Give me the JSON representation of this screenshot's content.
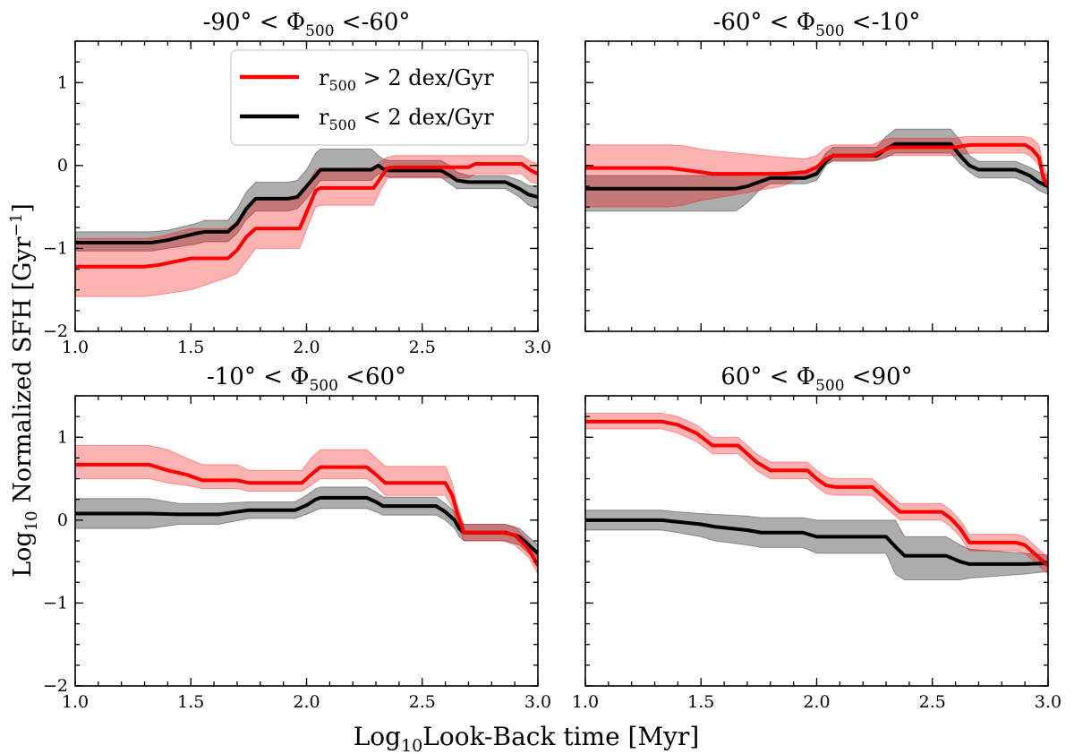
{
  "figure": {
    "xlabel_main": "Log",
    "xlabel_sub": "10",
    "xlabel_rest": "Look-Back time [Myr]",
    "ylabel_main": "Log",
    "ylabel_sub": "10",
    "ylabel_rest": " Normalized SFH [Gyr",
    "ylabel_sup": "−1",
    "ylabel_end": "]"
  },
  "legend": {
    "entries": [
      {
        "pre": "r",
        "sub": "500",
        "post": " > 2 dex/Gyr",
        "color": "#ff0000"
      },
      {
        "pre": "r",
        "sub": "500",
        "post": " < 2 dex/Gyr",
        "color": "#000000"
      }
    ]
  },
  "chart_data": [
    {
      "type": "line",
      "title_parts": {
        "pre": "-90° < Φ",
        "sub": "500",
        "post": " <-60°"
      },
      "xlim": [
        1.0,
        3.0
      ],
      "ylim": [
        -2,
        1.5
      ],
      "xticks": [
        1.0,
        1.5,
        2.0,
        2.5,
        3.0
      ],
      "xtick_labels": [
        "1.0",
        "1.5",
        "2.0",
        "2.5",
        "3.0"
      ],
      "yticks": [
        -2,
        -1,
        0,
        1
      ],
      "ytick_labels": [
        "−2",
        "−1",
        "0",
        "1"
      ],
      "series": [
        {
          "color": "#ff0000",
          "x": [
            1.0,
            1.3,
            1.36,
            1.5,
            1.66,
            1.7,
            1.74,
            1.78,
            1.97,
            2.01,
            2.04,
            2.06,
            2.29,
            2.32,
            2.35,
            2.38,
            2.7,
            2.73,
            2.93,
            2.97,
            3.0
          ],
          "y": [
            -1.22,
            -1.22,
            -1.2,
            -1.12,
            -1.12,
            -1.02,
            -0.86,
            -0.76,
            -0.76,
            -0.5,
            -0.3,
            -0.27,
            -0.27,
            -0.15,
            -0.03,
            -0.02,
            -0.02,
            0.02,
            0.02,
            -0.06,
            -0.1
          ],
          "lower": [
            -1.58,
            -1.58,
            -1.56,
            -1.5,
            -1.35,
            -1.3,
            -1.15,
            -1.0,
            -1.0,
            -0.7,
            -0.5,
            -0.48,
            -0.48,
            -0.3,
            -0.15,
            -0.15,
            -0.15,
            -0.1,
            -0.1,
            -0.2,
            -0.22
          ],
          "upper": [
            -0.88,
            -0.88,
            -0.86,
            -0.76,
            -0.76,
            -0.67,
            -0.5,
            -0.4,
            -0.4,
            -0.2,
            -0.05,
            -0.06,
            -0.06,
            0.05,
            0.1,
            0.12,
            0.12,
            0.12,
            0.12,
            0.05,
            0.02
          ]
        },
        {
          "color": "#000000",
          "x": [
            1.0,
            1.33,
            1.4,
            1.52,
            1.56,
            1.66,
            1.7,
            1.74,
            1.78,
            1.92,
            1.96,
            2.0,
            2.04,
            2.06,
            2.28,
            2.31,
            2.33,
            2.36,
            2.58,
            2.62,
            2.65,
            2.7,
            2.74,
            2.8,
            2.86,
            2.92,
            2.96,
            3.0
          ],
          "y": [
            -0.93,
            -0.93,
            -0.9,
            -0.82,
            -0.8,
            -0.8,
            -0.7,
            -0.52,
            -0.4,
            -0.4,
            -0.38,
            -0.25,
            -0.12,
            -0.05,
            -0.05,
            0.0,
            -0.04,
            -0.06,
            -0.06,
            -0.12,
            -0.18,
            -0.2,
            -0.2,
            -0.2,
            -0.2,
            -0.28,
            -0.35,
            -0.38
          ],
          "lower": [
            -1.03,
            -1.03,
            -1.0,
            -0.95,
            -0.92,
            -0.92,
            -0.82,
            -0.65,
            -0.55,
            -0.55,
            -0.52,
            -0.4,
            -0.25,
            -0.18,
            -0.18,
            -0.1,
            -0.12,
            -0.14,
            -0.14,
            -0.22,
            -0.28,
            -0.28,
            -0.28,
            -0.28,
            -0.28,
            -0.38,
            -0.48,
            -0.52
          ],
          "upper": [
            -0.8,
            -0.8,
            -0.78,
            -0.7,
            -0.66,
            -0.66,
            -0.52,
            -0.32,
            -0.2,
            -0.2,
            -0.18,
            -0.05,
            0.15,
            0.2,
            0.2,
            0.12,
            0.08,
            0.06,
            0.06,
            0.0,
            -0.08,
            -0.12,
            -0.12,
            -0.12,
            -0.12,
            -0.18,
            -0.24,
            -0.25
          ]
        }
      ]
    },
    {
      "type": "line",
      "title_parts": {
        "pre": "-60° < Φ",
        "sub": "500",
        "post": " <-10°"
      },
      "xlim": [
        1.0,
        3.0
      ],
      "ylim": [
        -2,
        1.5
      ],
      "xticks": [
        1.0,
        1.5,
        2.0,
        2.5,
        3.0
      ],
      "xtick_labels": [],
      "yticks": [
        -2,
        -1,
        0,
        1
      ],
      "ytick_labels": [],
      "series": [
        {
          "color": "#ff0000",
          "x": [
            1.0,
            1.36,
            1.42,
            1.5,
            1.55,
            1.85,
            1.95,
            2.0,
            2.04,
            2.07,
            2.24,
            2.28,
            2.32,
            2.6,
            2.64,
            2.67,
            2.9,
            2.93,
            2.96,
            2.98,
            3.0
          ],
          "y": [
            -0.03,
            -0.03,
            -0.05,
            -0.08,
            -0.1,
            -0.1,
            -0.08,
            -0.02,
            0.08,
            0.12,
            0.12,
            0.17,
            0.22,
            0.22,
            0.24,
            0.25,
            0.25,
            0.2,
            0.1,
            -0.15,
            -0.25
          ],
          "lower": [
            -0.5,
            -0.5,
            -0.48,
            -0.42,
            -0.4,
            -0.25,
            -0.12,
            -0.08,
            0.02,
            0.05,
            0.05,
            0.08,
            0.12,
            0.12,
            0.14,
            0.15,
            0.15,
            0.1,
            0.0,
            -0.22,
            -0.3
          ],
          "upper": [
            0.25,
            0.25,
            0.24,
            0.2,
            0.18,
            0.1,
            0.08,
            0.12,
            0.22,
            0.25,
            0.25,
            0.3,
            0.33,
            0.33,
            0.35,
            0.35,
            0.35,
            0.33,
            0.25,
            0.0,
            -0.12
          ]
        },
        {
          "color": "#000000",
          "x": [
            1.0,
            1.65,
            1.7,
            1.75,
            1.8,
            1.95,
            2.0,
            2.04,
            2.07,
            2.26,
            2.3,
            2.34,
            2.58,
            2.62,
            2.66,
            2.7,
            2.86,
            2.92,
            2.96,
            3.0
          ],
          "y": [
            -0.28,
            -0.28,
            -0.25,
            -0.2,
            -0.15,
            -0.15,
            -0.1,
            0.05,
            0.12,
            0.12,
            0.2,
            0.26,
            0.26,
            0.12,
            0.0,
            -0.05,
            -0.05,
            -0.12,
            -0.2,
            -0.25
          ],
          "lower": [
            -0.55,
            -0.55,
            -0.45,
            -0.3,
            -0.22,
            -0.22,
            -0.18,
            0.0,
            0.06,
            0.06,
            0.1,
            0.15,
            0.15,
            0.02,
            -0.08,
            -0.15,
            -0.15,
            -0.22,
            -0.3,
            -0.35
          ],
          "upper": [
            -0.12,
            -0.12,
            -0.12,
            -0.1,
            -0.08,
            -0.08,
            -0.02,
            0.15,
            0.22,
            0.22,
            0.35,
            0.44,
            0.44,
            0.3,
            0.12,
            0.05,
            0.05,
            -0.02,
            -0.08,
            -0.12
          ]
        }
      ]
    },
    {
      "type": "line",
      "title_parts": {
        "pre": "-10° < Φ",
        "sub": "500",
        "post": " <60°"
      },
      "xlim": [
        1.0,
        3.0
      ],
      "ylim": [
        -2,
        1.5
      ],
      "xticks": [
        1.0,
        1.5,
        2.0,
        2.5,
        3.0
      ],
      "xtick_labels": [
        "1.0",
        "1.5",
        "2.0",
        "2.5",
        "3.0"
      ],
      "yticks": [
        -2,
        -1,
        0,
        1
      ],
      "ytick_labels": [
        "−2",
        "−1",
        "0",
        "1"
      ],
      "series": [
        {
          "color": "#ff0000",
          "x": [
            1.0,
            1.32,
            1.4,
            1.48,
            1.55,
            1.7,
            1.75,
            1.98,
            2.02,
            2.06,
            2.26,
            2.3,
            2.34,
            2.6,
            2.63,
            2.65,
            2.68,
            2.85,
            2.9,
            2.96,
            3.0
          ],
          "y": [
            0.67,
            0.67,
            0.6,
            0.55,
            0.48,
            0.48,
            0.45,
            0.45,
            0.55,
            0.64,
            0.64,
            0.55,
            0.45,
            0.45,
            0.3,
            0.1,
            -0.15,
            -0.15,
            -0.18,
            -0.35,
            -0.55
          ],
          "lower": [
            0.5,
            0.5,
            0.45,
            0.42,
            0.38,
            0.38,
            0.35,
            0.35,
            0.42,
            0.5,
            0.5,
            0.42,
            0.3,
            0.3,
            0.15,
            -0.05,
            -0.25,
            -0.25,
            -0.3,
            -0.45,
            -0.65
          ],
          "upper": [
            0.9,
            0.9,
            0.85,
            0.75,
            0.67,
            0.67,
            0.6,
            0.6,
            0.75,
            0.85,
            0.85,
            0.75,
            0.65,
            0.65,
            0.45,
            0.2,
            -0.05,
            -0.05,
            -0.08,
            -0.25,
            -0.45
          ]
        },
        {
          "color": "#000000",
          "x": [
            1.0,
            1.32,
            1.45,
            1.62,
            1.75,
            1.95,
            2.0,
            2.04,
            2.06,
            2.26,
            2.3,
            2.33,
            2.56,
            2.6,
            2.64,
            2.66,
            2.68,
            2.86,
            2.92,
            2.96,
            3.0
          ],
          "y": [
            0.08,
            0.08,
            0.07,
            0.07,
            0.12,
            0.12,
            0.18,
            0.25,
            0.27,
            0.27,
            0.22,
            0.17,
            0.17,
            0.1,
            0.0,
            -0.1,
            -0.15,
            -0.15,
            -0.2,
            -0.3,
            -0.4
          ],
          "lower": [
            -0.1,
            -0.1,
            -0.05,
            -0.05,
            0.02,
            0.02,
            0.07,
            0.12,
            0.14,
            0.14,
            0.1,
            0.06,
            0.06,
            0.0,
            -0.1,
            -0.2,
            -0.25,
            -0.25,
            -0.3,
            -0.4,
            -0.5
          ],
          "upper": [
            0.26,
            0.26,
            0.2,
            0.2,
            0.22,
            0.22,
            0.3,
            0.38,
            0.4,
            0.4,
            0.34,
            0.28,
            0.28,
            0.2,
            0.1,
            -0.02,
            -0.05,
            -0.05,
            -0.1,
            -0.2,
            -0.3
          ]
        }
      ]
    },
    {
      "type": "line",
      "title_parts": {
        "pre": "60° < Φ",
        "sub": "500",
        "post": " <90°"
      },
      "xlim": [
        1.0,
        3.0
      ],
      "ylim": [
        -2,
        1.5
      ],
      "xticks": [
        1.0,
        1.5,
        2.0,
        2.5,
        3.0
      ],
      "xtick_labels": [
        "1.0",
        "1.5",
        "2.0",
        "2.5",
        "3.0"
      ],
      "yticks": [
        -2,
        -1,
        0,
        1
      ],
      "ytick_labels": [],
      "series": [
        {
          "color": "#ff0000",
          "x": [
            1.0,
            1.33,
            1.4,
            1.48,
            1.55,
            1.66,
            1.7,
            1.74,
            1.8,
            1.96,
            2.0,
            2.04,
            2.08,
            2.24,
            2.28,
            2.32,
            2.36,
            2.54,
            2.58,
            2.62,
            2.66,
            2.86,
            2.9,
            2.96,
            3.0
          ],
          "y": [
            1.19,
            1.19,
            1.15,
            1.05,
            0.9,
            0.9,
            0.8,
            0.7,
            0.6,
            0.6,
            0.5,
            0.42,
            0.4,
            0.4,
            0.3,
            0.2,
            0.1,
            0.1,
            0.02,
            -0.1,
            -0.27,
            -0.27,
            -0.3,
            -0.45,
            -0.55
          ],
          "lower": [
            1.1,
            1.1,
            1.05,
            0.95,
            0.8,
            0.8,
            0.7,
            0.6,
            0.5,
            0.5,
            0.4,
            0.32,
            0.3,
            0.3,
            0.2,
            0.1,
            0.0,
            0.0,
            -0.08,
            -0.2,
            -0.37,
            -0.37,
            -0.4,
            -0.55,
            -0.65
          ],
          "upper": [
            1.29,
            1.29,
            1.25,
            1.15,
            1.0,
            1.0,
            0.9,
            0.8,
            0.7,
            0.7,
            0.6,
            0.52,
            0.5,
            0.5,
            0.4,
            0.3,
            0.2,
            0.2,
            0.12,
            0.0,
            -0.17,
            -0.17,
            -0.2,
            -0.35,
            -0.45
          ]
        },
        {
          "color": "#000000",
          "x": [
            1.0,
            1.33,
            1.4,
            1.5,
            1.56,
            1.7,
            1.76,
            1.94,
            2.0,
            2.3,
            2.34,
            2.38,
            2.56,
            2.62,
            2.66,
            2.9,
            3.0
          ],
          "y": [
            0.0,
            0.0,
            -0.02,
            -0.05,
            -0.08,
            -0.12,
            -0.15,
            -0.15,
            -0.2,
            -0.2,
            -0.32,
            -0.43,
            -0.43,
            -0.5,
            -0.53,
            -0.53,
            -0.52
          ],
          "lower": [
            -0.12,
            -0.12,
            -0.15,
            -0.2,
            -0.25,
            -0.3,
            -0.33,
            -0.33,
            -0.4,
            -0.4,
            -0.65,
            -0.72,
            -0.72,
            -0.72,
            -0.7,
            -0.65,
            -0.62
          ],
          "upper": [
            0.12,
            0.12,
            0.1,
            0.08,
            0.07,
            0.05,
            0.03,
            0.03,
            0.0,
            0.0,
            0.0,
            -0.2,
            -0.2,
            -0.3,
            -0.35,
            -0.4,
            -0.42
          ]
        }
      ]
    }
  ]
}
